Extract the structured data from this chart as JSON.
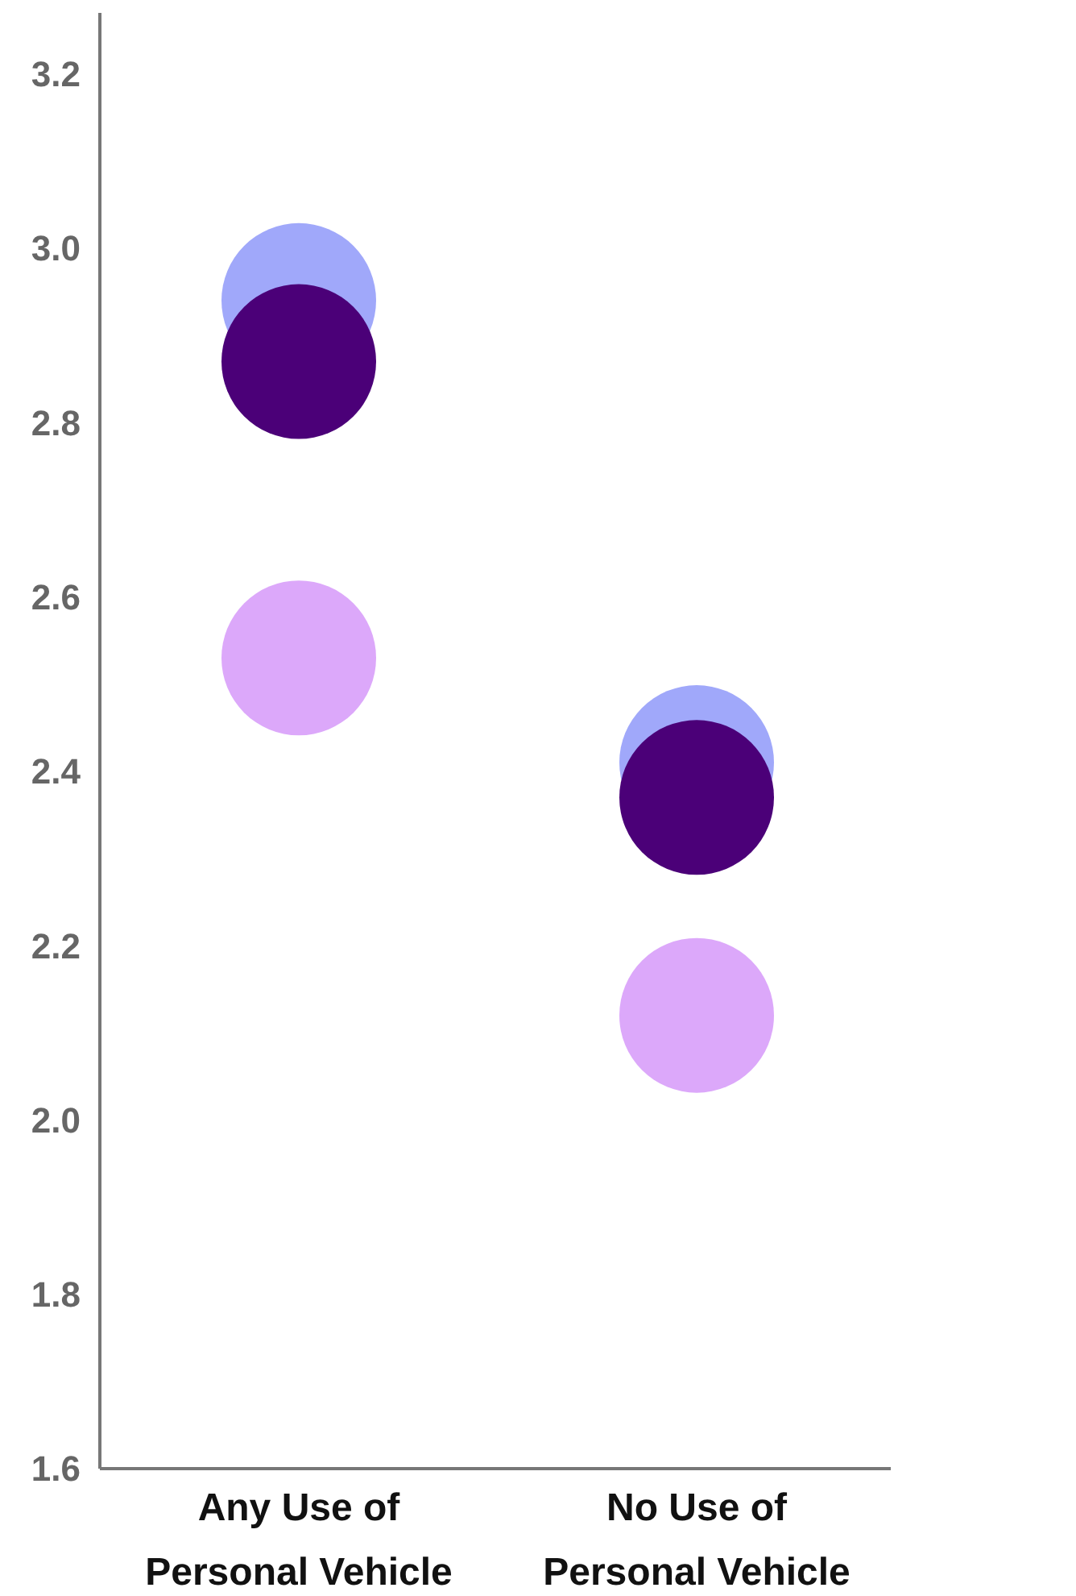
{
  "chart_data": {
    "type": "scatter",
    "categories": [
      "Any Use of Personal Vehicle",
      "No Use of Personal Vehicle"
    ],
    "series": [
      {
        "color": "#a0a8fa",
        "values": [
          2.94,
          2.41
        ]
      },
      {
        "color": "#dca8fa",
        "values": [
          2.53,
          2.12
        ]
      },
      {
        "color": "#4b0078",
        "values": [
          2.87,
          2.37
        ]
      }
    ],
    "ylim": [
      1.6,
      3.27
    ],
    "yticks": [
      1.6,
      1.8,
      {
        "value": 2,
        "label": "2.0"
      },
      2.2,
      2.4,
      2.6,
      2.8,
      {
        "value": 3,
        "label": "3.0"
      },
      3.2
    ],
    "marker": "circle",
    "grid": false,
    "legend": false
  }
}
